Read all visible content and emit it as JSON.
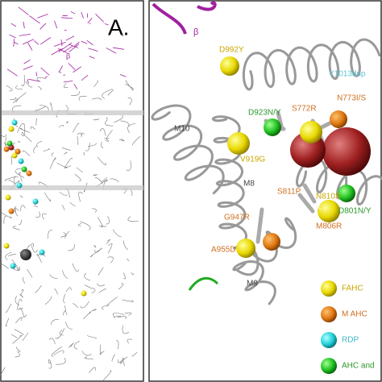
{
  "panel_a": {
    "label": "A.",
    "beta": "β"
  },
  "panel_b": {
    "beta": "β",
    "labels": [
      "D992Y",
      "Y1013dup",
      "D923N/Y",
      "S772R",
      "N773I/S",
      "M10",
      "V919G",
      "M8",
      "S811P",
      "K",
      "K",
      "N810S",
      "D801N/Y",
      "G947R",
      "M806R",
      "A955D",
      "M9"
    ]
  },
  "legend": [
    "FAHC",
    "M AHC",
    "RDP",
    "AHC and"
  ]
}
